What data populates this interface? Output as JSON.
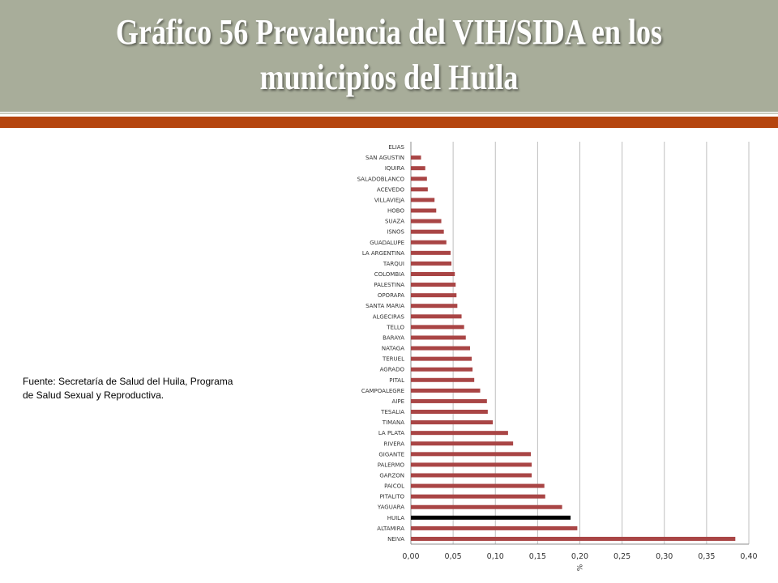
{
  "slide": {
    "title": "Gráfico 56 Prevalencia del VIH/SIDA en los municipios del Huila",
    "source": "Fuente: Secretaría de Salud del Huila, Programa de Salud Sexual y Reproductiva.",
    "colors": {
      "title_band": "#a8ad9a",
      "accent_bar": "#b5450f"
    }
  },
  "chart_data": {
    "type": "bar",
    "orientation": "horizontal",
    "categories": [
      "ELIAS",
      "SAN AGUSTIN",
      "IQUIRA",
      "SALADOBLANCO",
      "ACEVEDO",
      "VILLAVIEJA",
      "HOBO",
      "SUAZA",
      "ISNOS",
      "GUADALUPE",
      "LA ARGENTINA",
      "TARQUI",
      "COLOMBIA",
      "PALESTINA",
      "OPORAPA",
      "SANTA MARIA",
      "ALGECIRAS",
      "TELLO",
      "BARAYA",
      "NATAGA",
      "TERUEL",
      "AGRADO",
      "PITAL",
      "CAMPOALEGRE",
      "AIPE",
      "TESALIA",
      "TIMANA",
      "LA PLATA",
      "RIVERA",
      "GIGANTE",
      "PALERMO",
      "GARZON",
      "PAICOL",
      "PITALITO",
      "YAGUARA",
      "HUILA",
      "ALTAMIRA",
      "NEIVA"
    ],
    "values": [
      0.0,
      0.012,
      0.017,
      0.019,
      0.02,
      0.028,
      0.03,
      0.036,
      0.039,
      0.042,
      0.047,
      0.048,
      0.052,
      0.053,
      0.054,
      0.055,
      0.06,
      0.063,
      0.065,
      0.07,
      0.072,
      0.073,
      0.075,
      0.082,
      0.09,
      0.091,
      0.097,
      0.115,
      0.121,
      0.142,
      0.143,
      0.143,
      0.158,
      0.159,
      0.179,
      0.189,
      0.197,
      0.384
    ],
    "highlight_category": "HUILA",
    "xlim": [
      0,
      0.4
    ],
    "xticks": [
      "0,00",
      "0,05",
      "0,10",
      "0,15",
      "0,20",
      "0,25",
      "0,30",
      "0,35",
      "0,40"
    ],
    "xtick_values": [
      0,
      0.05,
      0.1,
      0.15,
      0.2,
      0.25,
      0.3,
      0.35,
      0.4
    ],
    "xlabel": "%",
    "grid": "vertical",
    "colors": {
      "bar": "#a94545",
      "highlight": "#000000",
      "grid": "#bfbfbf"
    }
  }
}
